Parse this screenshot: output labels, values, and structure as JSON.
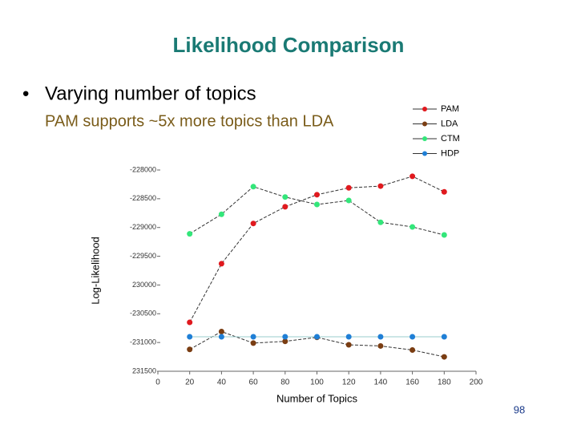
{
  "header": {
    "title": "Likelihood Comparison"
  },
  "bullets": {
    "main": "Varying number of topics",
    "sub": "PAM supports ~5x more topics than LDA"
  },
  "page_number": "98",
  "chart_data": {
    "type": "line",
    "y_label": "Log-Likelihood",
    "x_label": "Number of Topics",
    "x": [
      20,
      40,
      60,
      80,
      100,
      120,
      140,
      160,
      180
    ],
    "series": [
      {
        "name": "PAM",
        "color": "#e0191e",
        "values": [
          -230650,
          -229630,
          -228930,
          -228640,
          -228430,
          -228310,
          -228280,
          -228110,
          -228380
        ]
      },
      {
        "name": "LDA",
        "color": "#7a3d12",
        "values": [
          -231120,
          -230810,
          -231010,
          -230980,
          -230910,
          -231040,
          -231060,
          -231130,
          -231250
        ]
      },
      {
        "name": "CTM",
        "color": "#33e67a",
        "values": [
          -229110,
          -228770,
          -228290,
          -228470,
          -228600,
          -228530,
          -228910,
          -228990,
          -229130
        ]
      },
      {
        "name": "HDP",
        "color": "#1f7fd6",
        "values": [
          -230900,
          -230900,
          -230900,
          -230900,
          -230900,
          -230900,
          -230900,
          -230900,
          -230900
        ]
      }
    ],
    "xlim": [
      0,
      200
    ],
    "xticks": [
      0,
      20,
      40,
      60,
      80,
      100,
      120,
      140,
      160,
      180,
      200
    ],
    "ylim": [
      -231500,
      -228000
    ],
    "yticks": [
      -228000,
      -228500,
      -229000,
      -229500,
      {
        "value": -230000,
        "label": "230000"
      },
      -230500,
      -231000,
      {
        "value": -231500,
        "label": "231500"
      }
    ]
  }
}
